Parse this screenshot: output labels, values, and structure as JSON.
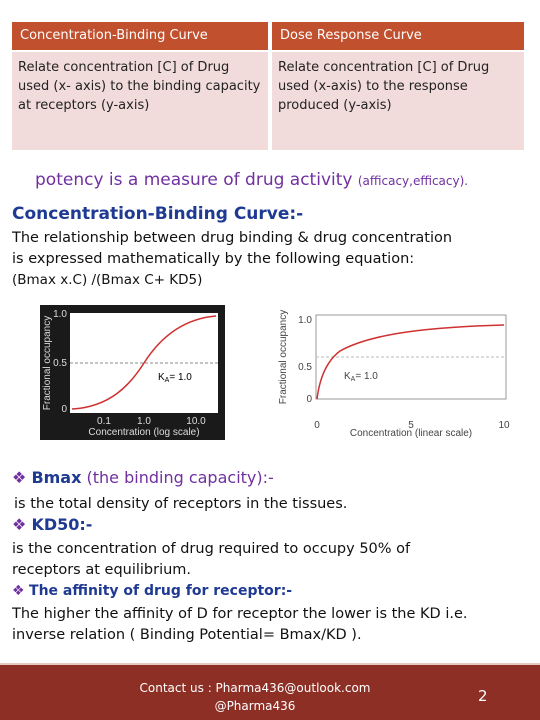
{
  "table": {
    "header": [
      "Concentration-Binding Curve",
      "Dose Response Curve"
    ],
    "rows": [
      [
        "Relate concentration [C] of Drug used (x- axis) to the binding capacity at receptors (y-axis)",
        "Relate concentration [C] of Drug used (x-axis) to the response produced (y-axis)"
      ]
    ]
  },
  "potency": {
    "main": "potency is a measure of drug activity",
    "small": "(afficacy,efficacy)."
  },
  "section_title": "Concentration-Binding Curve:-",
  "paragraph": {
    "text": "The relationship between drug binding & drug concentration is expressed mathematically by the following equation:",
    "equation": "(Bmax x.C) /(Bmax C+ KD5)"
  },
  "figures": [
    {
      "y_label": "Fractional occupancy",
      "yticks": [
        "1.0",
        "0.5",
        "0"
      ],
      "xticks": [
        "0.1",
        "1.0",
        "10.0"
      ],
      "x_label": "Concentration (log scale)",
      "k": "K",
      "k_sub": "A",
      "k_value": "= 1.0"
    },
    {
      "y_label": "Fractional occupancy",
      "yticks": [
        "1.0",
        "0.5",
        "0"
      ],
      "xticks": [
        "0",
        "5",
        "10"
      ],
      "x_label": "Concentration (linear scale)",
      "k": "K",
      "k_sub": "A",
      "k_value": "= 1.0"
    }
  ],
  "bullets": [
    {
      "term": "Bmax",
      "rest": "(the binding capacity):-",
      "desc": "is the total density of receptors in the tissues."
    },
    {
      "term": "KD50:-",
      "desc": "is the concentration of drug required to occupy 50% of receptors at equilibrium."
    },
    {
      "term": "The affinity of drug for receptor:-",
      "desc": "The higher the affinity of D for receptor the lower is the KD i.e. inverse relation ( Binding Potential= Bmax/KD )."
    }
  ],
  "footer": {
    "contact": "Contact us : Pharma436@outlook.com",
    "handle": "@Pharma436",
    "page": "2"
  }
}
